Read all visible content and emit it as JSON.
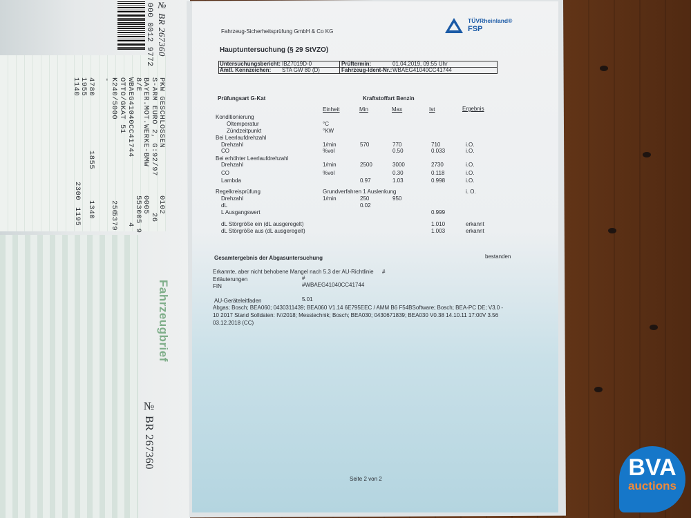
{
  "left_document": {
    "barcode_number": "000 0012 9772",
    "doc_number_top": "№ BR 267360",
    "title": "Fahrzeugbrief",
    "doc_number_bottom": "№ BR 267360",
    "vehicle_lines": [
      "PKW GESCHLOSSEN",
      "S-ARM EURO 2, G:92/97",
      "BAYER.MOT.WERKE-BMW",
      "8/E",
      "WBAEG41040CC41744",
      "OTTO/GKAT 51",
      "K240/5000",
      "-",
      "4780",
      "1955",
      "1140"
    ],
    "side_values": [
      "0102",
      "26",
      "0005",
      "553005 9",
      "4",
      "250",
      "5379",
      "1855",
      "1340",
      "2300",
      "1195"
    ]
  },
  "document": {
    "company": "Fahrzeug-Sicherheitsprüfung GmbH & Co KG",
    "logo_brand": "TÜVRheinland®",
    "logo_sub": "FSP",
    "title": "Hauptuntersuchung (§ 29 StVZO)",
    "info": {
      "report_label": "Untersuchungsbericht:",
      "report_value": "IBZ7019D-0",
      "date_label": "Prüftermin:",
      "date_value": "01.04.2019, 09:55 Uhr",
      "plate_label": "Amtl. Kennzeichen:",
      "plate_value": "STA GW 80 (D)",
      "vin_label": "Fahrzeug-Ident-Nr.:",
      "vin_value": "WBAEG41040CC41744"
    },
    "test_type": "Prüfungsart G-Kat",
    "fuel_type": "Kraftstoffart Benzin",
    "columns": [
      "Einheit",
      "Min",
      "Max",
      "Ist",
      "Ergebnis"
    ],
    "rows": [
      {
        "label": "Konditionierung",
        "indent": 0,
        "unit": "",
        "min": "",
        "max": "",
        "ist": "",
        "result": ""
      },
      {
        "label": "Öltemperatur",
        "indent": 2,
        "unit": "°C",
        "min": "",
        "max": "",
        "ist": "",
        "result": ""
      },
      {
        "label": "Zündzeitpunkt",
        "indent": 2,
        "unit": "°KW",
        "min": "",
        "max": "",
        "ist": "",
        "result": ""
      },
      {
        "label": "Bei Leerlaufdrehzahl",
        "indent": 0,
        "unit": "",
        "min": "",
        "max": "",
        "ist": "",
        "result": ""
      },
      {
        "label": "Drehzahl",
        "indent": 1,
        "unit": "1/min",
        "min": "570",
        "max": "770",
        "ist": "710",
        "result": "i.O."
      },
      {
        "label": "CO",
        "indent": 1,
        "unit": "%vol",
        "min": "",
        "max": "0.50",
        "ist": "0.033",
        "result": "i.O."
      },
      {
        "label": "Bei erhöhter Leerlaufdrehzahl",
        "indent": 0,
        "unit": "",
        "min": "",
        "max": "",
        "ist": "",
        "result": ""
      },
      {
        "label": "Drehzahl",
        "indent": 1,
        "unit": "1/min",
        "min": "2500",
        "max": "3000",
        "ist": "2730",
        "result": "i.O."
      },
      {
        "label": "CO",
        "indent": 1,
        "unit": "%vol",
        "min": "",
        "max": "0.30",
        "ist": "0.118",
        "result": "i.O."
      },
      {
        "label": "Lambda",
        "indent": 1,
        "unit": "",
        "min": "0.97",
        "max": "1.03",
        "ist": "0.998",
        "result": "i.O."
      },
      {
        "label": "Regelkreisprüfung",
        "indent": 0,
        "unit": "Grundverfahren 1 Auslenkung",
        "min": "",
        "max": "",
        "ist": "",
        "result": "i. O."
      },
      {
        "label": "Drehzahl",
        "indent": 1,
        "unit": "1/min",
        "min": "250",
        "max": "950",
        "ist": "",
        "result": ""
      },
      {
        "label": "dL",
        "indent": 1,
        "unit": "",
        "min": "0.02",
        "max": "",
        "ist": "",
        "result": ""
      },
      {
        "label": "L Ausgangswert",
        "indent": 1,
        "unit": "",
        "min": "",
        "max": "",
        "ist": "0.999",
        "result": ""
      },
      {
        "label": "dL Störgröße ein (dL ausgeregelt)",
        "indent": 1,
        "unit": "",
        "min": "",
        "max": "",
        "ist": "1.010",
        "result": "erkannt"
      },
      {
        "label": "dL Störgröße aus (dL ausgeregelt)",
        "indent": 1,
        "unit": "",
        "min": "",
        "max": "",
        "ist": "1.003",
        "result": "erkannt"
      }
    ],
    "overall_label": "Gesamtergebnis der Abgasuntersuchung",
    "overall_value": "bestanden",
    "defects_label": "Erkannte, aber nicht behobene Mangel nach 5.3 der AU-Richtlinie",
    "defects_value": "#",
    "notes_label": "Erläuterungen",
    "notes_value": "#",
    "fin_label": "FIN",
    "fin_value": "#WBAEG41040CC41744",
    "guide_label": "AU-Geräteleitfaden",
    "guide_value": "5.01",
    "equipment_lines": [
      "Abgas; Bosch; BEA060; 0430311439; BEA060 V1.14 6E795EEC / AMM B6 F54BSoftware; Bosch; BEA-PC DE; V3.0 -",
      "10 2017 Stand Solldaten: IV/2018; Messtechnik; Bosch; BEA030; 0430671839; BEA030 V0.38 14.10.11 17:00V 3.56",
      "03.12.2018 (CC)"
    ],
    "page": "Seite 2 von 2"
  },
  "watermark": {
    "line1": "BVA",
    "line2": "auctions",
    "bg": "#1677c9",
    "accent": "#f08a3a"
  }
}
